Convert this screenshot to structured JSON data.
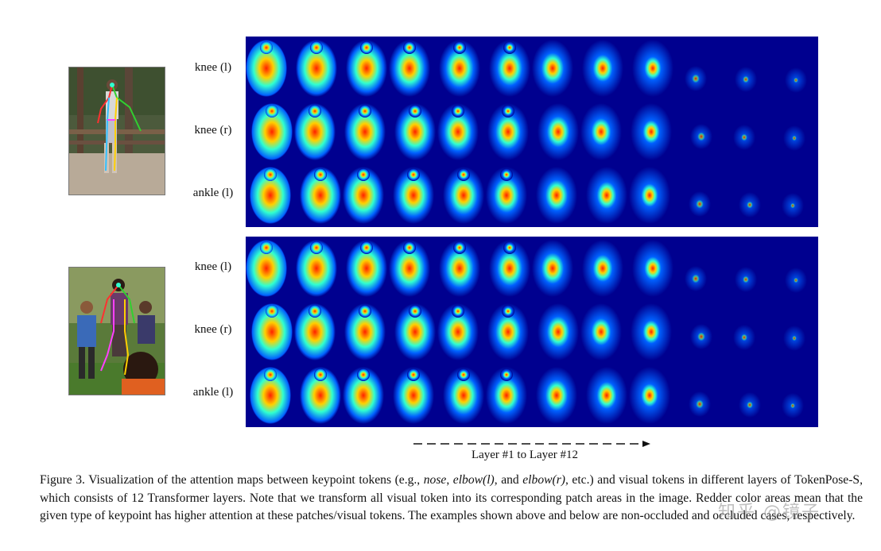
{
  "figure": {
    "top_group": {
      "rows": [
        "knee (l)",
        "knee (r)",
        "ankle (l)"
      ],
      "case": "non-occluded"
    },
    "bottom_group": {
      "rows": [
        "knee (l)",
        "knee (r)",
        "ankle (l)"
      ],
      "case": "occluded"
    },
    "layers_count": 12,
    "axis_caption": "Layer #1 to Layer #12"
  },
  "caption": {
    "p1": "Figure 3. Visualization of the attention maps between keypoint tokens (e.g., ",
    "nose": "nose",
    "p2": ", ",
    "elbow_l": "elbow(l)",
    "p3": ", and ",
    "elbow_r": "elbow(r)",
    "p4": ", etc.) and visual tokens in different layers of TokenPose-S, which consists of 12 Transformer layers. Note that we transform all visual token into its corresponding patch areas in the image. Redder color areas mean that the given type of keypoint has higher attention at these patches/visual tokens. The examples shown above and below are non-occluded and occluded cases, respectively."
  },
  "watermark": "知乎 @镜子",
  "colors": {
    "heat_low": "#00008f",
    "heat_high": "#c80000",
    "caption_text": "#111111"
  }
}
